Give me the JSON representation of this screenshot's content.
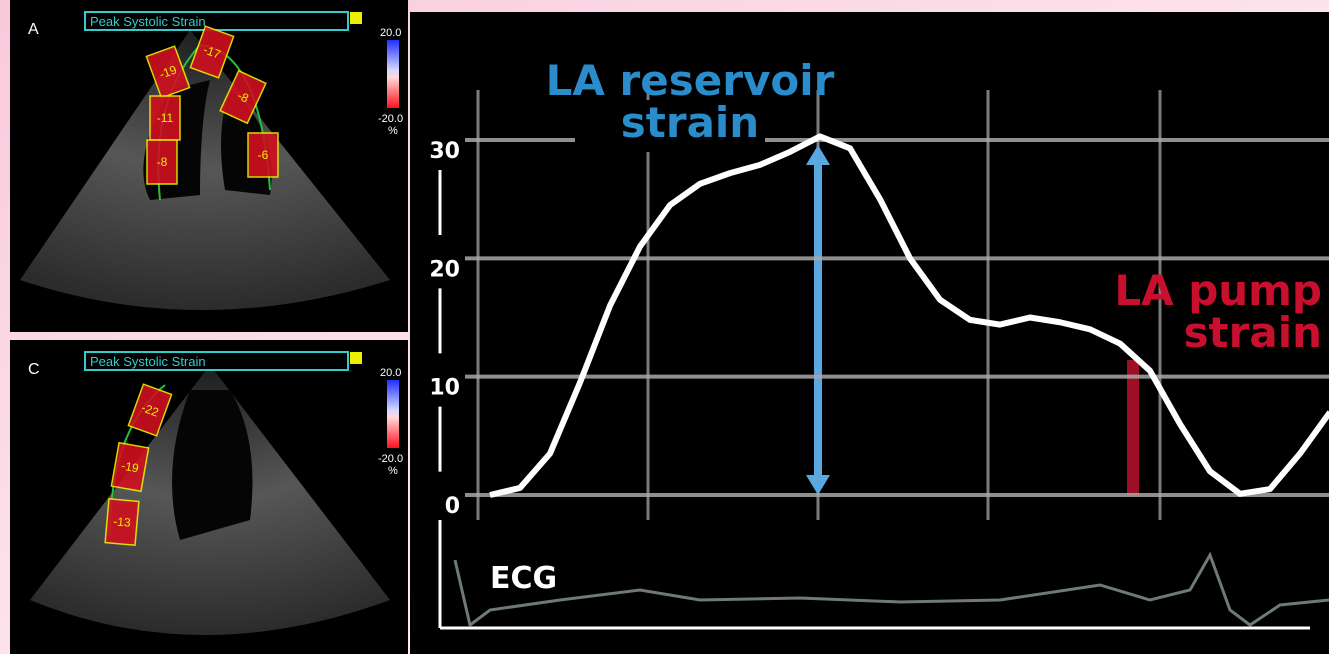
{
  "panels": [
    {
      "label": "A",
      "title": "Peak Systolic Strain",
      "scale_max": "20.0",
      "scale_min": "-20.0",
      "scale_unit": "%",
      "segments": [
        "-19",
        "-17",
        "-11",
        "-8",
        "-8",
        "-6"
      ]
    },
    {
      "label": "C",
      "title": "Peak Systolic Strain",
      "scale_max": "20.0",
      "scale_min": "-20.0",
      "scale_unit": "%",
      "segments": [
        "-22",
        "-19",
        "-13"
      ]
    }
  ],
  "chart_data": {
    "type": "line",
    "color": "#ffffff",
    "values": [
      0,
      0.6,
      3.5,
      9.5,
      16,
      21,
      24.5,
      26.3,
      27.2,
      27.9,
      29,
      30.3,
      29.3,
      25,
      20,
      16.5,
      14.8,
      14.4,
      15,
      14.6,
      14,
      12.8,
      10.5,
      6,
      2,
      0.1,
      0.5,
      3.5,
      7
    ],
    "ylim": [
      0,
      30
    ],
    "yticks": [
      0,
      10,
      20,
      30
    ],
    "grid": true,
    "annotations": [
      {
        "lines": [
          "LA reservoir",
          "strain"
        ],
        "color": "#2b8ccc"
      },
      {
        "lines": [
          "LA pump",
          "strain"
        ],
        "color": "#c8102e"
      }
    ],
    "ecg_label": "ECG"
  }
}
